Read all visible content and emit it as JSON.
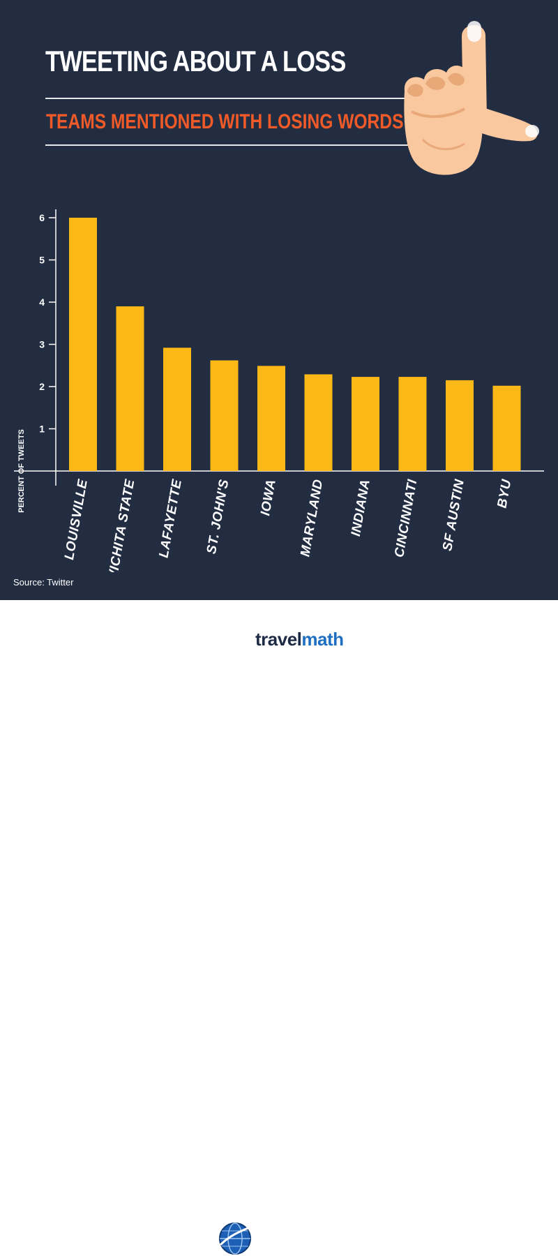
{
  "header": {
    "title": "TWEETING ABOUT A LOSS",
    "subtitle": "TEAMS MENTIONED WITH LOSING WORDS"
  },
  "source": "Source: Twitter",
  "brand": {
    "part1": "travel",
    "part2": "math"
  },
  "colors": {
    "background": "#232d42",
    "bar": "#fbb817",
    "subtitle": "#f05a28",
    "axis": "#ffffff"
  },
  "chart_data": {
    "type": "bar",
    "categories": [
      "LOUISVILLE",
      "WICHITA STATE",
      "LAFAYETTE",
      "ST. JOHN'S",
      "IOWA",
      "MARYLAND",
      "INDIANA",
      "CINCINNATI",
      "SF AUSTIN",
      "BYU"
    ],
    "values": [
      6.0,
      3.9,
      2.92,
      2.62,
      2.49,
      2.29,
      2.23,
      2.23,
      2.15,
      2.02
    ],
    "ylabel": "PERCENT OF TWEETS",
    "xlabel": "",
    "yticks": [
      1,
      2,
      3,
      4,
      5,
      6
    ],
    "ylim": [
      0,
      6
    ],
    "grid": false,
    "legend": "none"
  }
}
